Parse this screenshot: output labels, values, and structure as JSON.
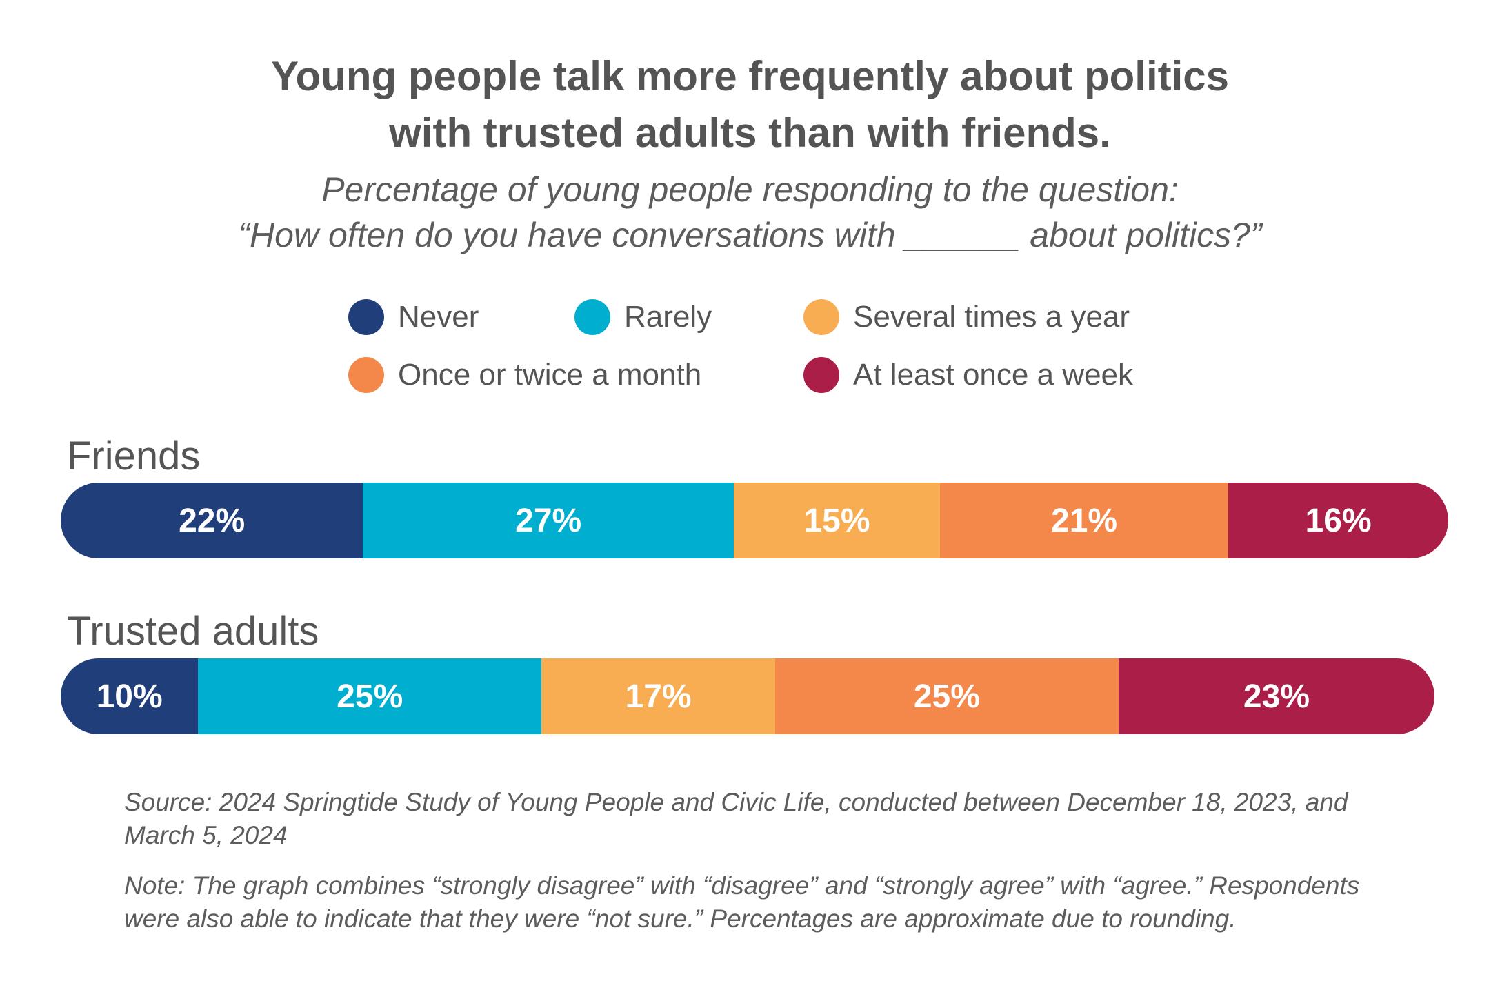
{
  "chart_data": {
    "type": "bar",
    "orientation": "horizontal-stacked",
    "title": "Young people talk more frequently about politics with trusted adults than with friends.",
    "title_lines": [
      "Young people talk more frequently about politics",
      "with trusted adults than with friends."
    ],
    "subtitle_lines": [
      "Percentage of young people responding to the question:",
      "“How often do you have conversations with ______ about politics?”"
    ],
    "categories": [
      "Friends",
      "Trusted adults"
    ],
    "series": [
      {
        "name": "Never",
        "color": "#203f7a",
        "values": [
          22,
          10
        ]
      },
      {
        "name": "Rarely",
        "color": "#00afcf",
        "values": [
          27,
          25
        ]
      },
      {
        "name": "Several times a year",
        "color": "#f9ad52",
        "values": [
          15,
          17
        ]
      },
      {
        "name": "Once or twice a month",
        "color": "#f3884a",
        "values": [
          21,
          25
        ]
      },
      {
        "name": "At least once a week",
        "color": "#ab1e47",
        "values": [
          16,
          23
        ]
      }
    ],
    "value_suffix": "%",
    "xlim": [
      0,
      101
    ],
    "legend_position": "top",
    "grid": false,
    "source": "Source: 2024 Springtide Study of Young People and Civic Life, conducted between December 18, 2023, and March 5, 2024",
    "note": "Note: The graph combines “strongly disagree” with “disagree” and “strongly agree” with “agree.” Respondents were also able to indicate that they were “not sure.” Percentages are approximate due to rounding."
  }
}
